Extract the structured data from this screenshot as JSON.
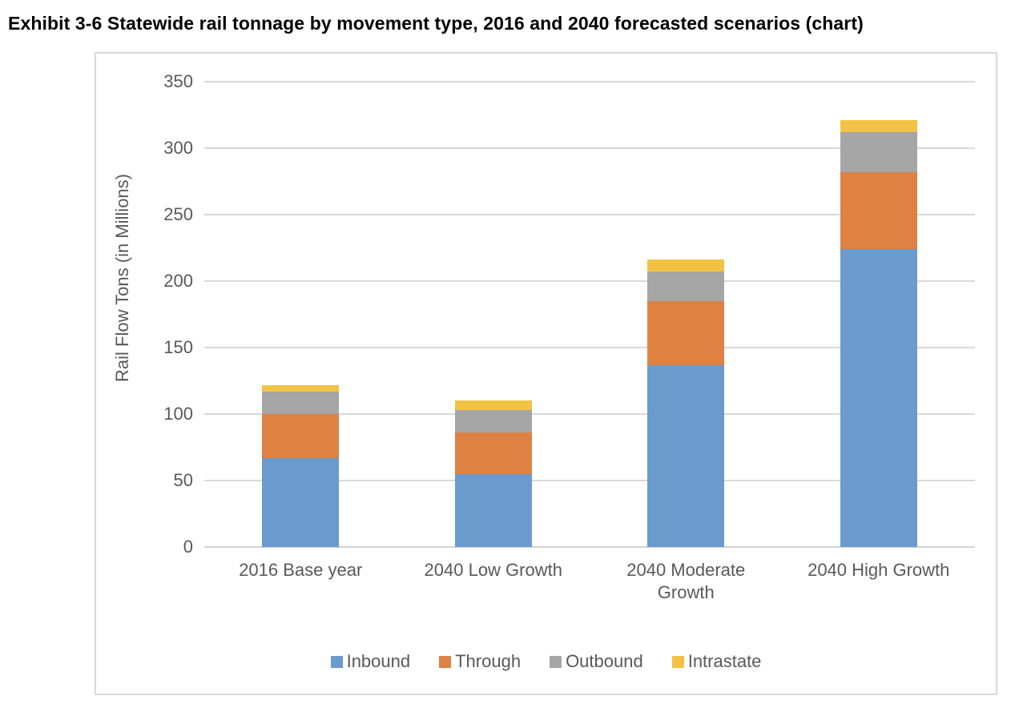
{
  "title": "Exhibit 3-6 Statewide rail tonnage by movement type, 2016 and 2040 forecasted scenarios (chart)",
  "chart_data": {
    "type": "bar",
    "stacked": true,
    "title": "Exhibit 3-6 Statewide rail tonnage by movement type, 2016 and 2040 forecasted scenarios (chart)",
    "xlabel": "",
    "ylabel": "Rail Flow Tons (in Millions)",
    "ylim": [
      0,
      350
    ],
    "yticks": [
      0,
      50,
      100,
      150,
      200,
      250,
      300,
      350
    ],
    "grid": true,
    "legend_position": "bottom",
    "categories": [
      "2016 Base year",
      "2040 Low Growth",
      "2040 Moderate\nGrowth",
      "2040 High Growth"
    ],
    "series": [
      {
        "name": "Inbound",
        "color": "#6B9ACC",
        "values": [
          67,
          55,
          137,
          224
        ]
      },
      {
        "name": "Through",
        "color": "#DD8243",
        "values": [
          33,
          31,
          48,
          58
        ]
      },
      {
        "name": "Outbound",
        "color": "#A6A6A6",
        "values": [
          17,
          17,
          22,
          30
        ]
      },
      {
        "name": "Intrastate",
        "color": "#F2C244",
        "values": [
          5,
          7,
          9,
          9
        ]
      }
    ],
    "stack_totals": [
      122,
      110,
      216,
      321
    ]
  },
  "colors": {
    "axis_text": "#595959",
    "gridline": "#D9D9D9",
    "frame_border": "#D9D9D9",
    "background": "#FFFFFF",
    "title_text": "#000000"
  }
}
